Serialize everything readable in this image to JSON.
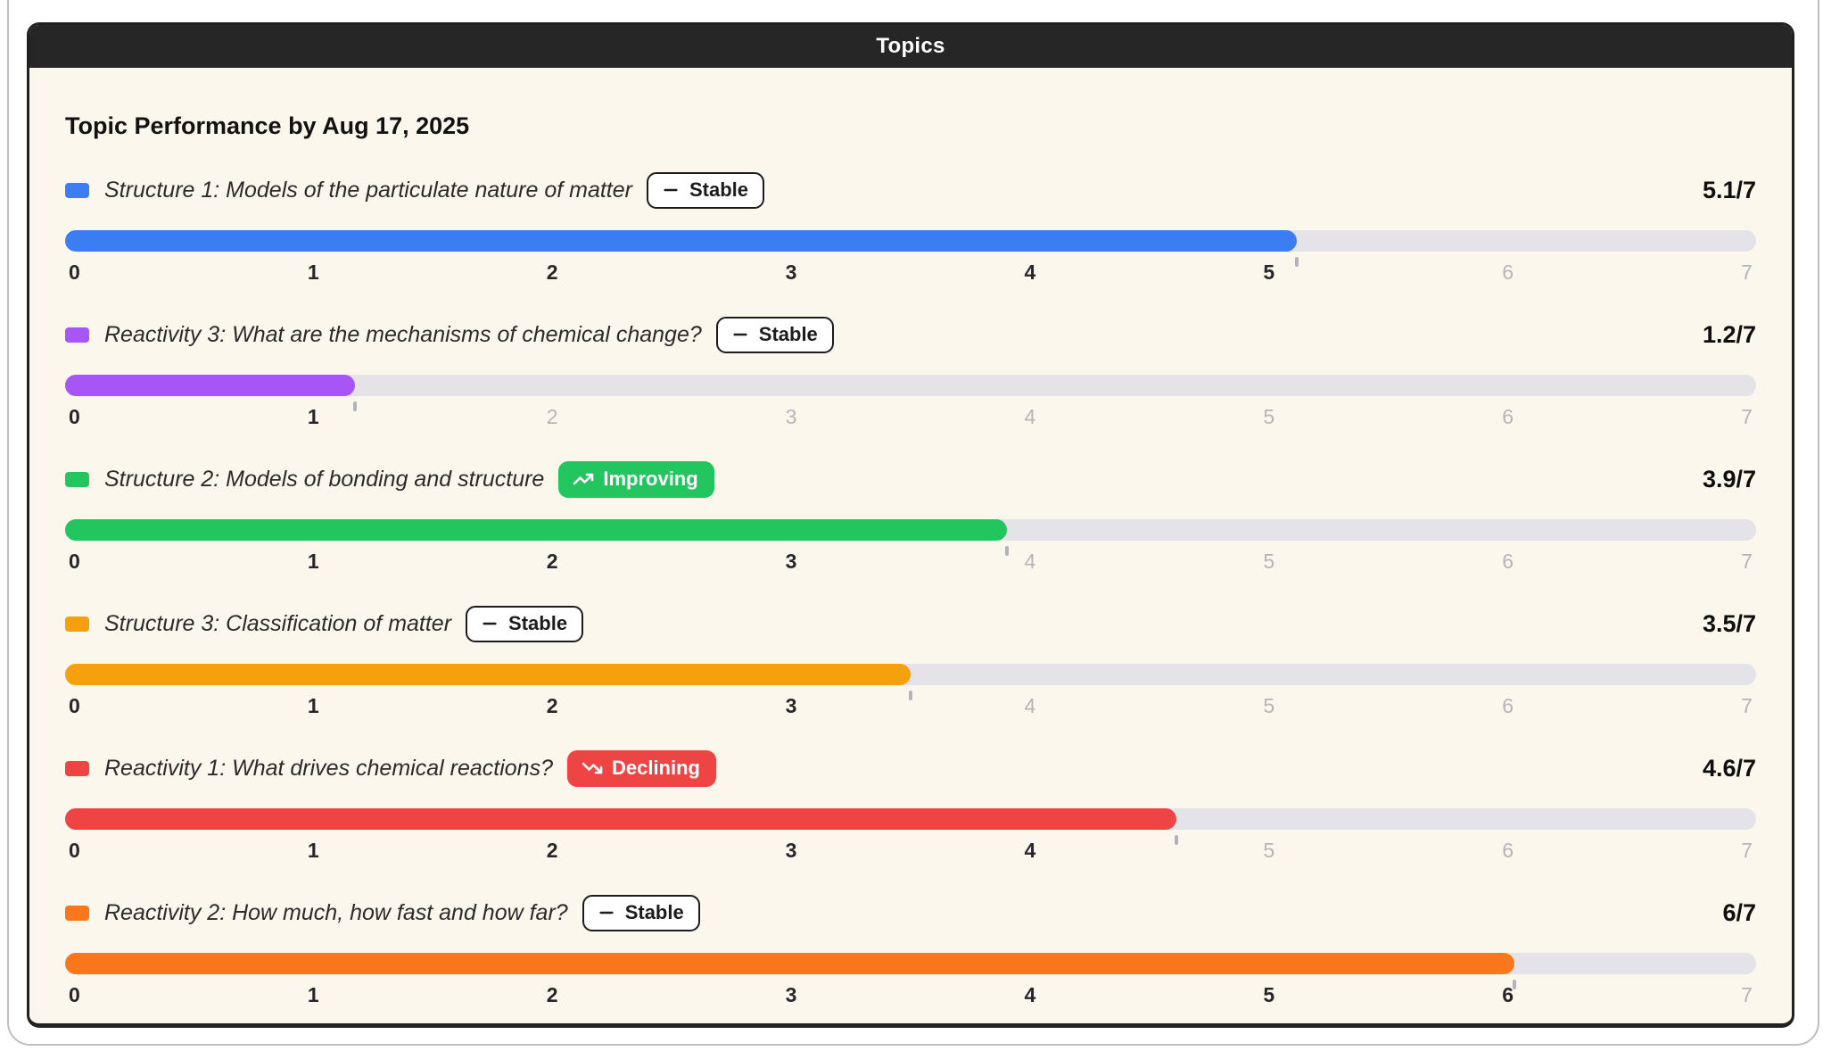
{
  "window": {
    "title": "Topics"
  },
  "heading": "Topic Performance by Aug 17, 2025",
  "scale": {
    "min": 0,
    "max": 7,
    "ticks": [
      "0",
      "1",
      "2",
      "3",
      "4",
      "5",
      "6",
      "7"
    ]
  },
  "colors": {
    "card_background": "#FCF7EC",
    "header_background": "#262626",
    "track": "#E4E4E8",
    "improving_badge": "#22C55E",
    "declining_badge": "#EF4444",
    "active_tick_text": "#27272a",
    "muted_tick_text": "#b5b5b8"
  },
  "topics": [
    {
      "label": "Structure 1: Models of the particulate nature of matter",
      "score": 5.1,
      "max": 7,
      "score_label": "5.1/7",
      "trend_label": "Stable",
      "trend_icon": "minus-icon",
      "trend_style": "outline",
      "color": "#3B7EF3"
    },
    {
      "label": "Reactivity 3: What are the mechanisms of chemical change?",
      "score": 1.2,
      "max": 7,
      "score_label": "1.2/7",
      "trend_label": "Stable",
      "trend_icon": "minus-icon",
      "trend_style": "outline",
      "color": "#A855F7"
    },
    {
      "label": "Structure 2: Models of bonding and structure",
      "score": 3.9,
      "max": 7,
      "score_label": "3.9/7",
      "trend_label": "Improving",
      "trend_icon": "trending-up-icon",
      "trend_style": "improving",
      "color": "#22C55E"
    },
    {
      "label": "Structure 3: Classification of matter",
      "score": 3.5,
      "max": 7,
      "score_label": "3.5/7",
      "trend_label": "Stable",
      "trend_icon": "minus-icon",
      "trend_style": "outline",
      "color": "#F5A00C"
    },
    {
      "label": "Reactivity 1: What drives chemical reactions?",
      "score": 4.6,
      "max": 7,
      "score_label": "4.6/7",
      "trend_label": "Declining",
      "trend_icon": "trending-down-icon",
      "trend_style": "declining",
      "color": "#EF4444"
    },
    {
      "label": "Reactivity 2: How much, how fast and how far?",
      "score": 6,
      "max": 7,
      "score_label": "6/7",
      "trend_label": "Stable",
      "trend_icon": "minus-icon",
      "trend_style": "outline",
      "color": "#F9761A"
    }
  ],
  "chart_data": {
    "type": "bar",
    "orientation": "horizontal",
    "title": "Topic Performance by Aug 17, 2025",
    "categories": [
      "Structure 1: Models of the particulate nature of matter",
      "Reactivity 3: What are the mechanisms of chemical change?",
      "Structure 2: Models of bonding and structure",
      "Structure 3: Classification of matter",
      "Reactivity 1: What drives chemical reactions?",
      "Reactivity 2: How much, how fast and how far?"
    ],
    "values": [
      5.1,
      1.2,
      3.9,
      3.5,
      4.6,
      6
    ],
    "annotations": [
      "Stable",
      "Stable",
      "Improving",
      "Stable",
      "Declining",
      "Stable"
    ],
    "bar_colors": [
      "#3B7EF3",
      "#A855F7",
      "#22C55E",
      "#F5A00C",
      "#EF4444",
      "#F9761A"
    ],
    "xlabel": "",
    "ylabel": "",
    "xlim": [
      0,
      7
    ],
    "x_ticks": [
      0,
      1,
      2,
      3,
      4,
      5,
      6,
      7
    ],
    "grid": false,
    "legend_position": "none"
  }
}
